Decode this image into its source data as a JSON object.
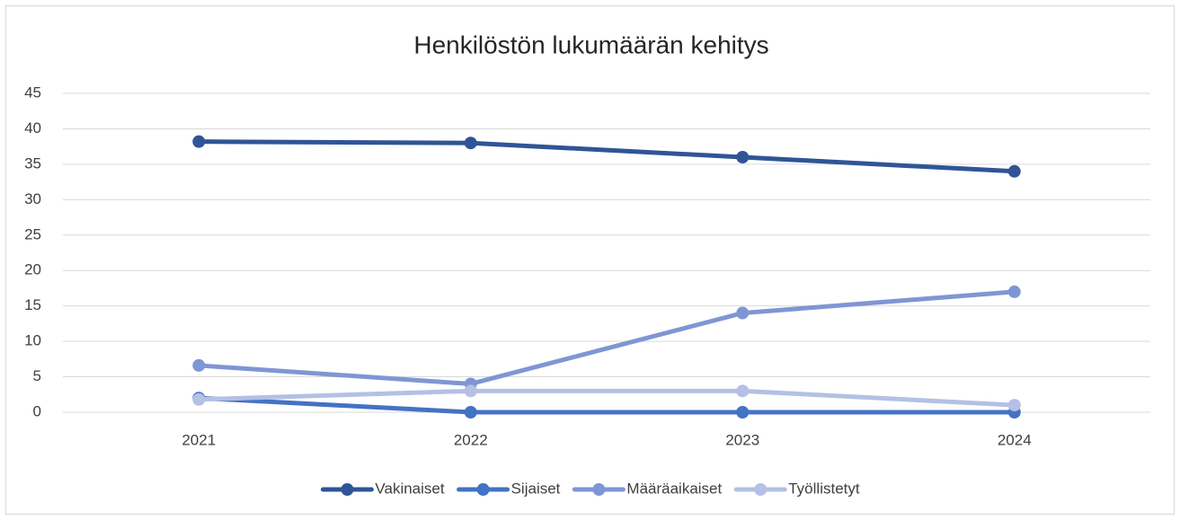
{
  "chart_data": {
    "type": "line",
    "title": "Henkilöstön lukumäärän kehitys",
    "categories": [
      "2021",
      "2022",
      "2023",
      "2024"
    ],
    "series": [
      {
        "name": "Vakinaiset",
        "color": "#2f5597",
        "values": [
          38.2,
          38,
          36,
          34
        ]
      },
      {
        "name": "Sijaiset",
        "color": "#4472c4",
        "values": [
          2,
          0,
          0,
          0
        ]
      },
      {
        "name": "Määräaikaiset",
        "color": "#7f96d4",
        "values": [
          6.6,
          4,
          14,
          17
        ]
      },
      {
        "name": "Työllistetyt",
        "color": "#b4c0e4",
        "values": [
          1.8,
          3,
          3,
          1
        ]
      }
    ],
    "ylim": [
      0,
      45
    ],
    "yticks": [
      0,
      5,
      10,
      15,
      20,
      25,
      30,
      35,
      40,
      45
    ],
    "grid": true,
    "legend": "bottom"
  }
}
